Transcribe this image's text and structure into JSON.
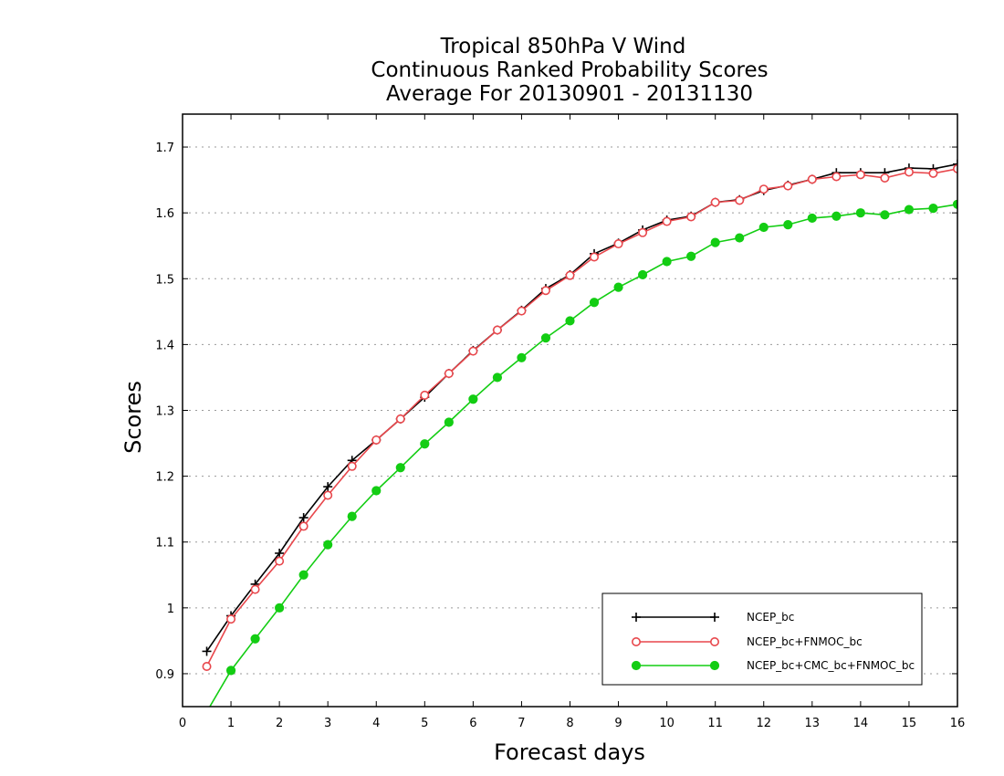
{
  "chart_data": {
    "type": "line",
    "title": [
      "Tropical 850hPa V Wind",
      "Continuous Ranked Probability Scores",
      "Average For 20130901 - 20131130"
    ],
    "xlabel": "Forecast days",
    "ylabel": "Scores",
    "xlim": [
      0,
      16
    ],
    "ylim": [
      0.85,
      1.75
    ],
    "xticks": [
      "0",
      "1",
      "2",
      "3",
      "4",
      "5",
      "6",
      "7",
      "8",
      "9",
      "10",
      "11",
      "12",
      "13",
      "14",
      "15",
      "16"
    ],
    "yticks": [
      "0.9",
      "1",
      "1.1",
      "1.2",
      "1.3",
      "1.4",
      "1.5",
      "1.6",
      "1.7"
    ],
    "ytick_values": [
      0.9,
      1.0,
      1.1,
      1.2,
      1.3,
      1.4,
      1.5,
      1.6,
      1.7
    ],
    "grid": "horizontal dotted",
    "legend_position": "bottom-right",
    "x": [
      0.5,
      1,
      1.5,
      2,
      2.5,
      3,
      3.5,
      4,
      4.5,
      5,
      5.5,
      6,
      6.5,
      7,
      7.5,
      8,
      8.5,
      9,
      9.5,
      10,
      10.5,
      11,
      11.5,
      12,
      12.5,
      13,
      13.5,
      14,
      14.5,
      15,
      15.5,
      16
    ],
    "series": [
      {
        "name": "NCEP_bc",
        "color": "#000000",
        "marker": "plus",
        "values": [
          0.934,
          0.988,
          1.036,
          1.083,
          1.137,
          1.184,
          1.224,
          1.255,
          1.287,
          1.32,
          1.356,
          1.391,
          1.422,
          1.452,
          1.485,
          1.506,
          1.538,
          1.554,
          1.574,
          1.589,
          1.595,
          1.616,
          1.62,
          1.634,
          1.642,
          1.651,
          1.661,
          1.661,
          1.661,
          1.668,
          1.667,
          1.674
        ]
      },
      {
        "name": "NCEP_bc+FNMOC_bc",
        "color": "#e8474c",
        "marker": "open-circle",
        "values": [
          0.911,
          0.983,
          1.028,
          1.071,
          1.124,
          1.171,
          1.215,
          1.255,
          1.287,
          1.323,
          1.356,
          1.39,
          1.422,
          1.451,
          1.482,
          1.505,
          1.533,
          1.553,
          1.57,
          1.587,
          1.594,
          1.616,
          1.619,
          1.636,
          1.641,
          1.651,
          1.655,
          1.658,
          1.653,
          1.662,
          1.66,
          1.667
        ]
      },
      {
        "name": "NCEP_bc+CMC_bc+FNMOC_bc",
        "color": "#13cd13",
        "marker": "filled-circle",
        "values": [
          0.842,
          0.905,
          0.953,
          1.0,
          1.05,
          1.096,
          1.139,
          1.178,
          1.213,
          1.249,
          1.282,
          1.317,
          1.35,
          1.38,
          1.41,
          1.436,
          1.464,
          1.487,
          1.506,
          1.526,
          1.534,
          1.555,
          1.562,
          1.578,
          1.582,
          1.592,
          1.595,
          1.6,
          1.597,
          1.605,
          1.607,
          1.613
        ]
      }
    ]
  }
}
